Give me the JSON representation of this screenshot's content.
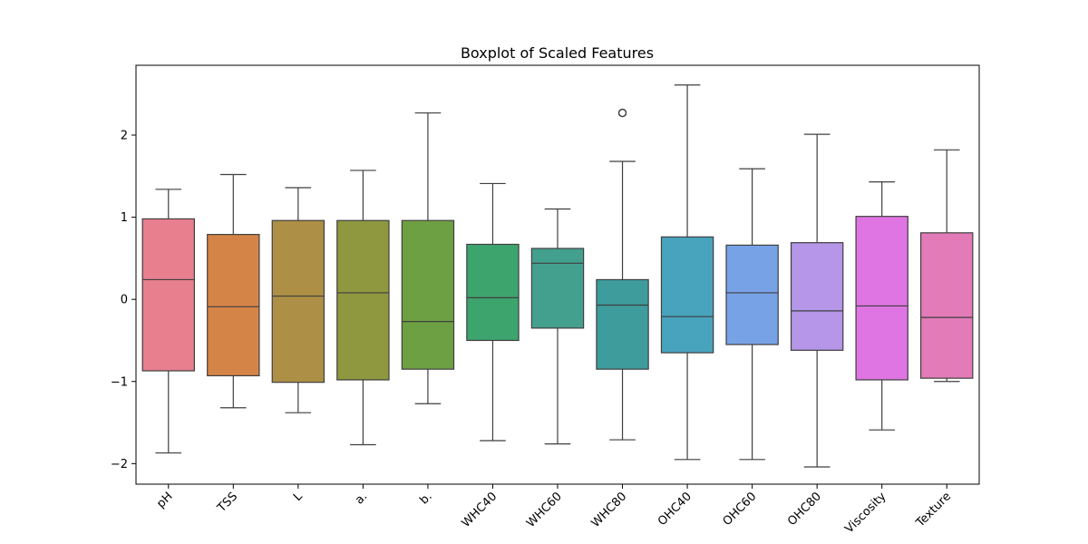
{
  "chart_data": {
    "type": "boxplot",
    "title": "Boxplot of Scaled Features",
    "xlabel": "",
    "ylabel": "",
    "ylim": [
      -2.25,
      2.85
    ],
    "yticks": [
      -2,
      -1,
      0,
      1,
      2
    ],
    "ytick_labels": [
      "−2",
      "−1",
      "0",
      "1",
      "2"
    ],
    "grid": false,
    "categories": [
      "pH",
      "TSS",
      "L",
      "a.",
      "b.",
      "WHC40",
      "WHC60",
      "WHC80",
      "OHC40",
      "OHC60",
      "OHC80",
      "Viscosity",
      "Texture"
    ],
    "boxes": [
      {
        "name": "pH",
        "whisker_low": -1.87,
        "q1": -0.87,
        "median": 0.24,
        "q3": 0.98,
        "whisker_high": 1.34,
        "outliers": [],
        "color": "#e77f8f"
      },
      {
        "name": "TSS",
        "whisker_low": -1.32,
        "q1": -0.93,
        "median": -0.09,
        "q3": 0.79,
        "whisker_high": 1.52,
        "outliers": [],
        "color": "#d58448"
      },
      {
        "name": "L",
        "whisker_low": -1.38,
        "q1": -1.01,
        "median": 0.04,
        "q3": 0.96,
        "whisker_high": 1.36,
        "outliers": [],
        "color": "#ad8f45"
      },
      {
        "name": "a.",
        "whisker_low": -1.77,
        "q1": -0.98,
        "median": 0.08,
        "q3": 0.96,
        "whisker_high": 1.57,
        "outliers": [],
        "color": "#8f973f"
      },
      {
        "name": "b.",
        "whisker_low": -1.27,
        "q1": -0.85,
        "median": -0.27,
        "q3": 0.96,
        "whisker_high": 2.27,
        "outliers": [],
        "color": "#6da042"
      },
      {
        "name": "WHC40",
        "whisker_low": -1.72,
        "q1": -0.5,
        "median": 0.02,
        "q3": 0.67,
        "whisker_high": 1.41,
        "outliers": [],
        "color": "#3ea46e"
      },
      {
        "name": "WHC60",
        "whisker_low": -1.76,
        "q1": -0.35,
        "median": 0.44,
        "q3": 0.62,
        "whisker_high": 1.1,
        "outliers": [],
        "color": "#44a08e"
      },
      {
        "name": "WHC80",
        "whisker_low": -1.71,
        "q1": -0.85,
        "median": -0.07,
        "q3": 0.24,
        "whisker_high": 1.68,
        "outliers": [
          2.27
        ],
        "color": "#3f9c9d"
      },
      {
        "name": "OHC40",
        "whisker_low": -1.95,
        "q1": -0.65,
        "median": -0.21,
        "q3": 0.76,
        "whisker_high": 2.61,
        "outliers": [],
        "color": "#48a3bd"
      },
      {
        "name": "OHC60",
        "whisker_low": -1.95,
        "q1": -0.55,
        "median": 0.08,
        "q3": 0.66,
        "whisker_high": 1.59,
        "outliers": [],
        "color": "#77a2e6"
      },
      {
        "name": "OHC80",
        "whisker_low": -2.04,
        "q1": -0.62,
        "median": -0.14,
        "q3": 0.69,
        "whisker_high": 2.01,
        "outliers": [],
        "color": "#b596e8"
      },
      {
        "name": "Viscosity",
        "whisker_low": -1.59,
        "q1": -0.98,
        "median": -0.08,
        "q3": 1.01,
        "whisker_high": 1.43,
        "outliers": [],
        "color": "#df75e2"
      },
      {
        "name": "Texture",
        "whisker_low": -1.0,
        "q1": -0.96,
        "median": -0.22,
        "q3": 0.81,
        "whisker_high": 1.82,
        "outliers": [],
        "color": "#e37bb8"
      }
    ]
  }
}
